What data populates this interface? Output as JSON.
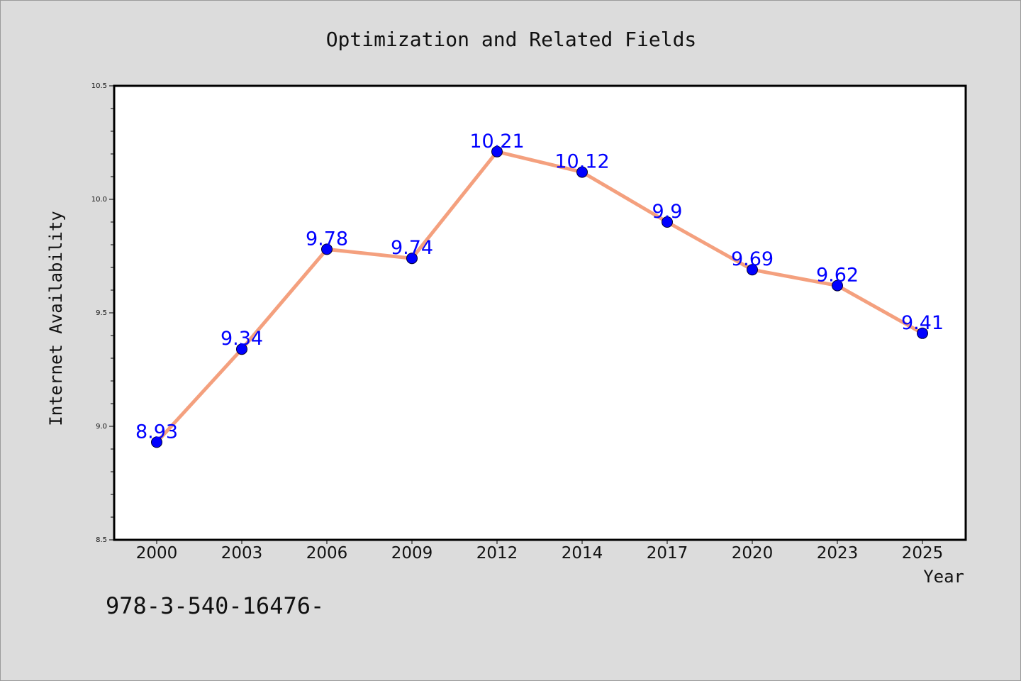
{
  "chart_data": {
    "type": "line",
    "title": "Optimization and Related Fields",
    "xlabel": "Year",
    "ylabel": "Internet Availability",
    "categories": [
      "2000",
      "2003",
      "2006",
      "2009",
      "2012",
      "2014",
      "2017",
      "2020",
      "2023",
      "2025"
    ],
    "series": [
      {
        "values": [
          8.93,
          9.34,
          9.78,
          9.74,
          10.21,
          10.12,
          9.9,
          9.69,
          9.62,
          9.41
        ],
        "labels": [
          "8.93",
          "9.34",
          "9.78",
          "9.74",
          "10.21",
          "10.12",
          "9.9",
          "9.69",
          "9.62",
          "9.41"
        ],
        "line_color": "#f4a07e",
        "marker_color": "#0000ff",
        "label_color": "#0000ff"
      }
    ],
    "ylim": [
      8.5,
      10.5
    ],
    "yticks": [
      "8.5",
      "9.0",
      "9.5",
      "10.0",
      "10.5"
    ],
    "grid": false,
    "legend": "none"
  },
  "footer_text": "978-3-540-16476-",
  "colors": {
    "background": "#dcdcdc",
    "plot_background": "#ffffff",
    "axis": "#000000"
  }
}
